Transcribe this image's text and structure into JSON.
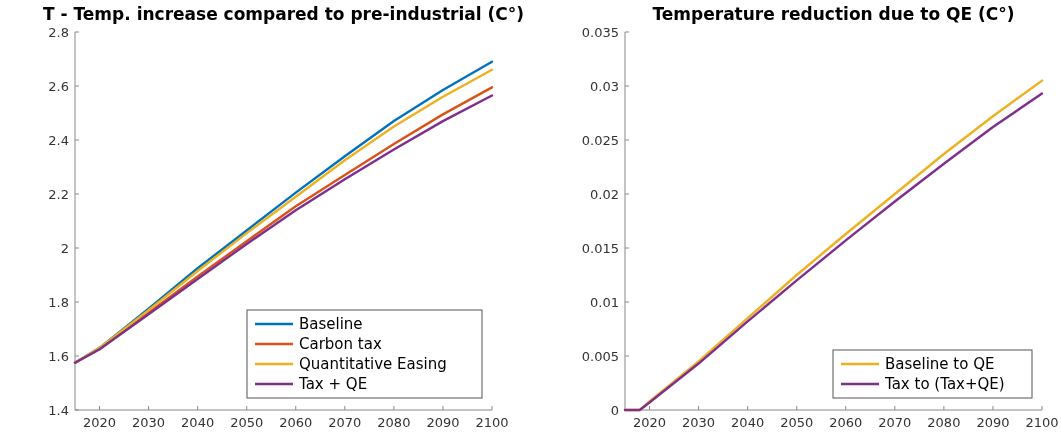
{
  "chart_data": [
    {
      "type": "line",
      "title": "T - Temp. increase compared to pre-industrial (C°)",
      "x": [
        2015,
        2020,
        2030,
        2040,
        2050,
        2060,
        2070,
        2080,
        2090,
        2100
      ],
      "xlim": [
        2015,
        2100
      ],
      "xticks": [
        2020,
        2030,
        2040,
        2050,
        2060,
        2070,
        2080,
        2090,
        2100
      ],
      "ylim": [
        1.4,
        2.8
      ],
      "yticks": [
        1.4,
        1.6,
        1.8,
        2,
        2.2,
        2.4,
        2.6,
        2.8
      ],
      "legend": "bottom right",
      "grid": false,
      "marker": "none",
      "line_style": "solid",
      "series": [
        {
          "name": "Baseline",
          "color": "#0072bd",
          "values": [
            1.575,
            1.63,
            1.775,
            1.925,
            2.065,
            2.205,
            2.34,
            2.47,
            2.585,
            2.69
          ]
        },
        {
          "name": "Carbon tax",
          "color": "#d95319",
          "values": [
            1.575,
            1.625,
            1.76,
            1.895,
            2.025,
            2.155,
            2.27,
            2.385,
            2.495,
            2.595
          ]
        },
        {
          "name": "Quantitative Easing",
          "color": "#edb120",
          "values": [
            1.575,
            1.63,
            1.77,
            1.915,
            2.055,
            2.19,
            2.325,
            2.45,
            2.56,
            2.66
          ]
        },
        {
          "name": "Tax + QE",
          "color": "#7e2f8e",
          "values": [
            1.575,
            1.625,
            1.755,
            1.885,
            2.015,
            2.14,
            2.255,
            2.365,
            2.47,
            2.565
          ]
        }
      ]
    },
    {
      "type": "line",
      "title": "Temperature reduction due to QE (C°)",
      "x": [
        2015,
        2018,
        2020,
        2030,
        2040,
        2050,
        2060,
        2070,
        2080,
        2090,
        2100
      ],
      "xlim": [
        2015,
        2100
      ],
      "xticks": [
        2020,
        2030,
        2040,
        2050,
        2060,
        2070,
        2080,
        2090,
        2100
      ],
      "ylim": [
        0,
        0.035
      ],
      "yticks": [
        0,
        0.005,
        0.01,
        0.015,
        0.02,
        0.025,
        0.03,
        0.035
      ],
      "legend": "bottom right",
      "grid": false,
      "marker": "none",
      "line_style": "solid",
      "series": [
        {
          "name": "Baseline to QE",
          "color": "#edb120",
          "values": [
            0,
            0,
            0.0008,
            0.0045,
            0.0085,
            0.0125,
            0.0163,
            0.02,
            0.0237,
            0.0272,
            0.0305
          ]
        },
        {
          "name": "Tax to (Tax+QE)",
          "color": "#7e2f8e",
          "values": [
            0,
            0,
            0.0007,
            0.0043,
            0.0082,
            0.012,
            0.0157,
            0.0193,
            0.0228,
            0.0262,
            0.0293
          ]
        }
      ]
    }
  ]
}
